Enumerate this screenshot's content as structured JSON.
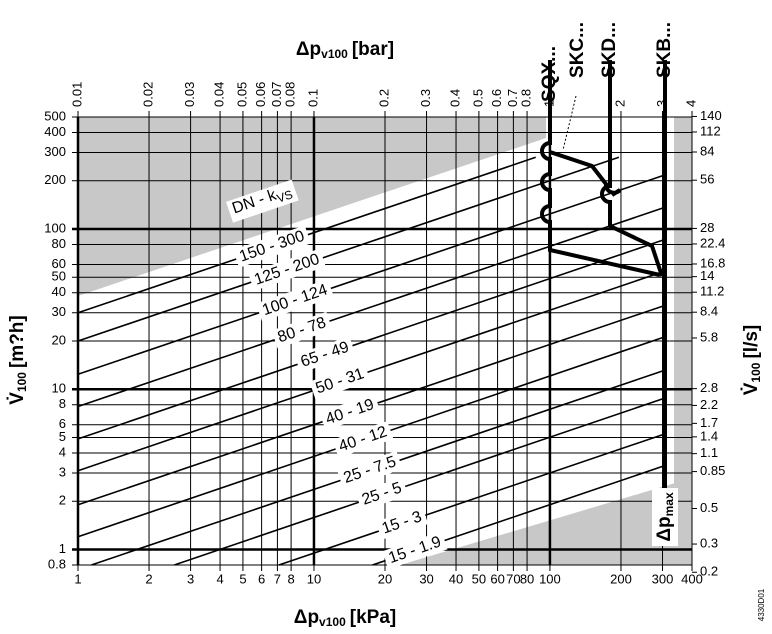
{
  "chart_data": {
    "type": "line",
    "x_title": {
      "main": "Δp",
      "sub": "v100",
      "unit": "[kPa]"
    },
    "x2_title": {
      "main": "Δp",
      "sub": "v100",
      "unit": "[bar]"
    },
    "y_title": {
      "main": "V̇",
      "sub": "100",
      "unit": "[m?h]"
    },
    "y2_title": {
      "main": "V̇",
      "sub": "100",
      "unit": "[l/s]"
    },
    "log_scale": true,
    "grid": true,
    "xlim": [
      1,
      400
    ],
    "xticks": [
      1,
      2,
      3,
      4,
      5,
      6,
      7,
      8,
      10,
      20,
      30,
      40,
      50,
      60,
      70,
      80,
      100,
      200,
      300,
      400
    ],
    "x2lim": [
      0.01,
      4
    ],
    "x2ticks": [
      0.01,
      0.02,
      0.03,
      0.04,
      0.05,
      0.06,
      0.07,
      0.08,
      0.1,
      0.2,
      0.3,
      0.4,
      0.5,
      0.6,
      0.7,
      0.8,
      1,
      2,
      3,
      4
    ],
    "ylim": [
      0.8,
      500
    ],
    "yticks": [
      0.8,
      1,
      2,
      3,
      4,
      5,
      6,
      8,
      10,
      20,
      30,
      40,
      50,
      60,
      80,
      100,
      200,
      300,
      400,
      500
    ],
    "y2lim": [
      0.222,
      138.9
    ],
    "y2ticks": [
      0.2,
      0.3,
      0.5,
      0.85,
      1.1,
      1.4,
      1.7,
      2.2,
      2.8,
      5.8,
      8.4,
      11.2,
      14,
      16.8,
      22.4,
      28,
      56,
      84,
      112,
      140
    ],
    "series_header": {
      "main": "DN - k",
      "sub": "VS"
    },
    "series": [
      {
        "name": "150 - 300",
        "color": "#000000",
        "x": [
          1,
          87
        ],
        "values": [
          30,
          280
        ]
      },
      {
        "name": "125 - 200",
        "color": "#000000",
        "x": [
          1,
          196
        ],
        "values": [
          20,
          280
        ]
      },
      {
        "name": "100 - 124",
        "color": "#000000",
        "x": [
          1,
          300
        ],
        "values": [
          12.4,
          215
        ]
      },
      {
        "name": "80 - 78",
        "color": "#000000",
        "x": [
          1,
          300
        ],
        "values": [
          7.8,
          135
        ]
      },
      {
        "name": "65 - 49",
        "color": "#000000",
        "x": [
          1,
          300
        ],
        "values": [
          4.9,
          85
        ]
      },
      {
        "name": "50 - 31",
        "color": "#000000",
        "x": [
          1,
          300
        ],
        "values": [
          3.1,
          54
        ]
      },
      {
        "name": "40 - 19",
        "color": "#000000",
        "x": [
          1,
          300
        ],
        "values": [
          1.9,
          33
        ]
      },
      {
        "name": "40 - 12",
        "color": "#000000",
        "x": [
          1,
          300
        ],
        "values": [
          1.2,
          21
        ]
      },
      {
        "name": "25 - 7.5",
        "color": "#000000",
        "x": [
          1.14,
          300
        ],
        "values": [
          0.8,
          13
        ]
      },
      {
        "name": "25 - 5",
        "color": "#000000",
        "x": [
          2.56,
          300
        ],
        "values": [
          0.8,
          8.7
        ]
      },
      {
        "name": "15 - 3",
        "color": "#000000",
        "x": [
          7.1,
          300
        ],
        "values": [
          0.8,
          5.2
        ]
      },
      {
        "name": "15 - 1.9",
        "color": "#000000",
        "x": [
          17.7,
          300
        ],
        "values": [
          0.8,
          3.3
        ]
      }
    ],
    "limit_curves": [
      "SQX...",
      "SKC...",
      "SKD...",
      "SKB..."
    ],
    "max_label": {
      "main": "Δp",
      "sub": "max"
    },
    "code": "4330D01"
  }
}
